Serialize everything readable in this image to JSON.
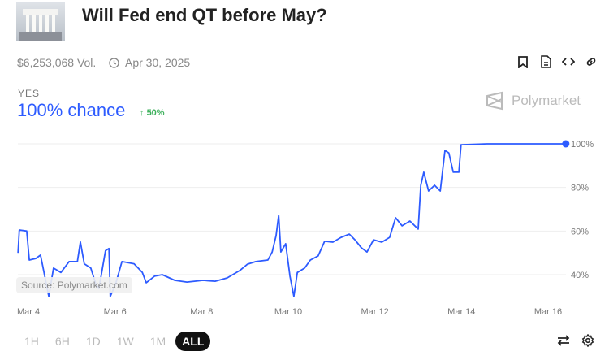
{
  "header": {
    "title": "Will Fed end QT before May?",
    "volume": "$6,253,068 Vol.",
    "end_date": "Apr 30, 2025"
  },
  "outcome": {
    "label": "YES",
    "chance": "100% chance",
    "delta": "50%"
  },
  "brand": "Polymarket",
  "source": "Source: Polymarket.com",
  "ranges": [
    "1H",
    "6H",
    "1D",
    "1W",
    "1M",
    "ALL"
  ],
  "active_range": "ALL",
  "colors": {
    "line": "#2d5bff",
    "delta": "#3cb05b"
  },
  "chart_data": {
    "type": "line",
    "x_unit": "day of March",
    "xticks": [
      {
        "label": "Mar 4",
        "v": 4
      },
      {
        "label": "Mar 6",
        "v": 6
      },
      {
        "label": "Mar 8",
        "v": 8
      },
      {
        "label": "Mar 10",
        "v": 10
      },
      {
        "label": "Mar 12",
        "v": 12
      },
      {
        "label": "Mar 14",
        "v": 14
      },
      {
        "label": "Mar 16",
        "v": 16
      }
    ],
    "yticks": [
      {
        "label": "100%",
        "v": 100
      },
      {
        "label": "80%",
        "v": 80
      },
      {
        "label": "60%",
        "v": 60
      },
      {
        "label": "40%",
        "v": 40
      }
    ],
    "series": [
      {
        "name": "Yes",
        "points": [
          [
            3.76,
            50
          ],
          [
            3.79,
            60.5
          ],
          [
            3.96,
            60
          ],
          [
            4.02,
            46.7
          ],
          [
            4.17,
            47.4
          ],
          [
            4.28,
            49
          ],
          [
            4.38,
            39
          ],
          [
            4.47,
            30
          ],
          [
            4.58,
            43
          ],
          [
            4.75,
            41
          ],
          [
            4.94,
            46
          ],
          [
            5.13,
            46
          ],
          [
            5.2,
            55
          ],
          [
            5.29,
            45
          ],
          [
            5.44,
            43
          ],
          [
            5.56,
            35.5
          ],
          [
            5.63,
            33.7
          ],
          [
            5.78,
            51
          ],
          [
            5.86,
            52
          ],
          [
            5.89,
            30
          ],
          [
            6.01,
            35.5
          ],
          [
            6.16,
            46
          ],
          [
            6.44,
            45
          ],
          [
            6.63,
            41
          ],
          [
            6.72,
            36.3
          ],
          [
            6.91,
            39.3
          ],
          [
            7.09,
            40
          ],
          [
            7.38,
            37.4
          ],
          [
            7.66,
            36.6
          ],
          [
            8.03,
            37.4
          ],
          [
            8.31,
            37
          ],
          [
            8.59,
            38.5
          ],
          [
            8.88,
            41.9
          ],
          [
            9.06,
            44.8
          ],
          [
            9.25,
            46
          ],
          [
            9.53,
            46.7
          ],
          [
            9.63,
            50.4
          ],
          [
            9.72,
            57.9
          ],
          [
            9.78,
            67.2
          ],
          [
            9.83,
            50.4
          ],
          [
            9.94,
            54.2
          ],
          [
            10.04,
            39.3
          ],
          [
            10.13,
            30
          ],
          [
            10.21,
            41
          ],
          [
            10.38,
            43
          ],
          [
            10.51,
            46.7
          ],
          [
            10.69,
            48.6
          ],
          [
            10.84,
            55.3
          ],
          [
            11.03,
            54.9
          ],
          [
            11.22,
            57.1
          ],
          [
            11.41,
            58.6
          ],
          [
            11.54,
            56
          ],
          [
            11.69,
            52.3
          ],
          [
            11.82,
            50.4
          ],
          [
            11.97,
            56
          ],
          [
            12.16,
            54.9
          ],
          [
            12.34,
            57.1
          ],
          [
            12.48,
            66.1
          ],
          [
            12.63,
            62.4
          ],
          [
            12.81,
            64.6
          ],
          [
            13.0,
            60.9
          ],
          [
            13.06,
            81
          ],
          [
            13.13,
            87
          ],
          [
            13.24,
            78.4
          ],
          [
            13.38,
            81
          ],
          [
            13.51,
            78.4
          ],
          [
            13.62,
            97
          ],
          [
            13.71,
            95.8
          ],
          [
            13.81,
            87
          ],
          [
            13.94,
            87
          ],
          [
            13.99,
            99.6
          ],
          [
            14.59,
            100
          ],
          [
            16.41,
            100
          ]
        ]
      }
    ]
  }
}
